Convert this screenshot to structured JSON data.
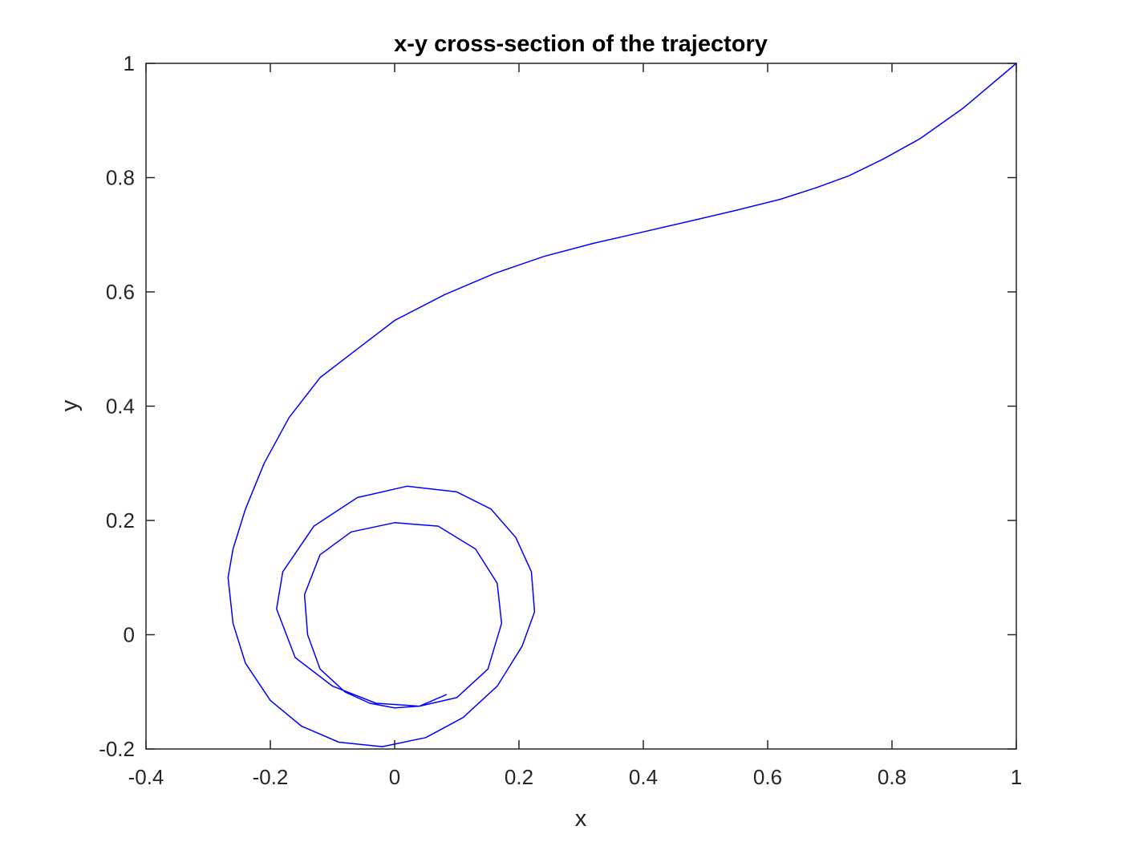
{
  "chart_data": {
    "type": "line",
    "title": "x-y cross-section of the trajectory",
    "xlabel": "x",
    "ylabel": "y",
    "xlim": [
      -0.4,
      1
    ],
    "ylim": [
      -0.2,
      1
    ],
    "xticks": [
      -0.4,
      -0.2,
      0,
      0.2,
      0.4,
      0.6,
      0.8,
      1
    ],
    "xtick_labels": [
      "-0.4",
      "-0.2",
      "0",
      "0.2",
      "0.4",
      "0.6",
      "0.8",
      "1"
    ],
    "yticks": [
      -0.2,
      0,
      0.2,
      0.4,
      0.6,
      0.8,
      1
    ],
    "ytick_labels": [
      "-0.2",
      "0",
      "0.2",
      "0.4",
      "0.6",
      "0.8",
      "1"
    ],
    "grid": false,
    "legend": "none",
    "colors": {
      "line": "#0000ff",
      "axes": "#262626"
    },
    "series": [
      {
        "x": [
          1.0,
          0.915,
          0.845,
          0.785,
          0.73,
          0.68,
          0.62,
          0.55,
          0.48,
          0.4,
          0.32,
          0.24,
          0.16,
          0.08,
          0.0,
          -0.06,
          -0.12,
          -0.17,
          -0.21,
          -0.24,
          -0.26,
          -0.268,
          -0.26,
          -0.24,
          -0.2,
          -0.15,
          -0.09,
          -0.02,
          0.05,
          0.11,
          0.165,
          0.205,
          0.225,
          0.22,
          0.195,
          0.155,
          0.1,
          0.02,
          -0.06,
          -0.13,
          -0.18,
          -0.19,
          -0.16,
          -0.1,
          -0.03,
          0.04,
          0.1,
          0.15,
          0.172,
          0.165,
          0.13,
          0.07,
          0.0,
          -0.07,
          -0.12,
          -0.145,
          -0.14,
          -0.12,
          -0.08,
          -0.04,
          0.0,
          0.04,
          0.083
        ],
        "y": [
          1.0,
          0.922,
          0.868,
          0.832,
          0.803,
          0.783,
          0.762,
          0.743,
          0.725,
          0.705,
          0.685,
          0.662,
          0.632,
          0.595,
          0.55,
          0.5,
          0.45,
          0.38,
          0.3,
          0.22,
          0.15,
          0.1,
          0.02,
          -0.05,
          -0.115,
          -0.16,
          -0.188,
          -0.196,
          -0.18,
          -0.145,
          -0.09,
          -0.02,
          0.04,
          0.11,
          0.17,
          0.22,
          0.25,
          0.26,
          0.24,
          0.19,
          0.11,
          0.045,
          -0.04,
          -0.09,
          -0.12,
          -0.125,
          -0.11,
          -0.06,
          0.02,
          0.09,
          0.15,
          0.19,
          0.196,
          0.18,
          0.14,
          0.07,
          0.0,
          -0.06,
          -0.1,
          -0.12,
          -0.128,
          -0.125,
          -0.105
        ]
      }
    ]
  }
}
